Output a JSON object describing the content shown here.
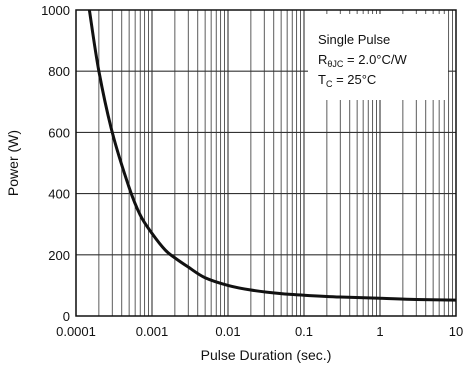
{
  "chart_data": {
    "type": "line",
    "title": "",
    "xlabel": "Pulse Duration (sec.)",
    "ylabel": "Power (W)",
    "xscale": "log",
    "xlim": [
      0.0001,
      10
    ],
    "ylim": [
      0,
      1000
    ],
    "grid": true,
    "x_ticks": [
      "0.0001",
      "0.001",
      "0.01",
      "0.1",
      "1",
      "10"
    ],
    "y_ticks": [
      "0",
      "200",
      "400",
      "600",
      "800",
      "1000"
    ],
    "annotation": {
      "line1": "Single Pulse",
      "line2_main": "R",
      "line2_sub": "θJC",
      "line2_rest": " = 2.0°C/W",
      "line3_main": "T",
      "line3_sub": "C",
      "line3_rest": " = 25°C"
    },
    "series": [
      {
        "x": [
          0.00015,
          0.0002,
          0.0003,
          0.0005,
          0.0007,
          0.001,
          0.0015,
          0.002,
          0.003,
          0.005,
          0.01,
          0.02,
          0.05,
          0.1,
          0.3,
          1,
          3,
          10
        ],
        "values": [
          1000,
          800,
          600,
          420,
          330,
          270,
          215,
          190,
          160,
          125,
          100,
          85,
          73,
          68,
          62,
          58,
          54,
          52
        ]
      }
    ],
    "colors": {
      "line": "#111111",
      "grid": "#333333"
    }
  }
}
